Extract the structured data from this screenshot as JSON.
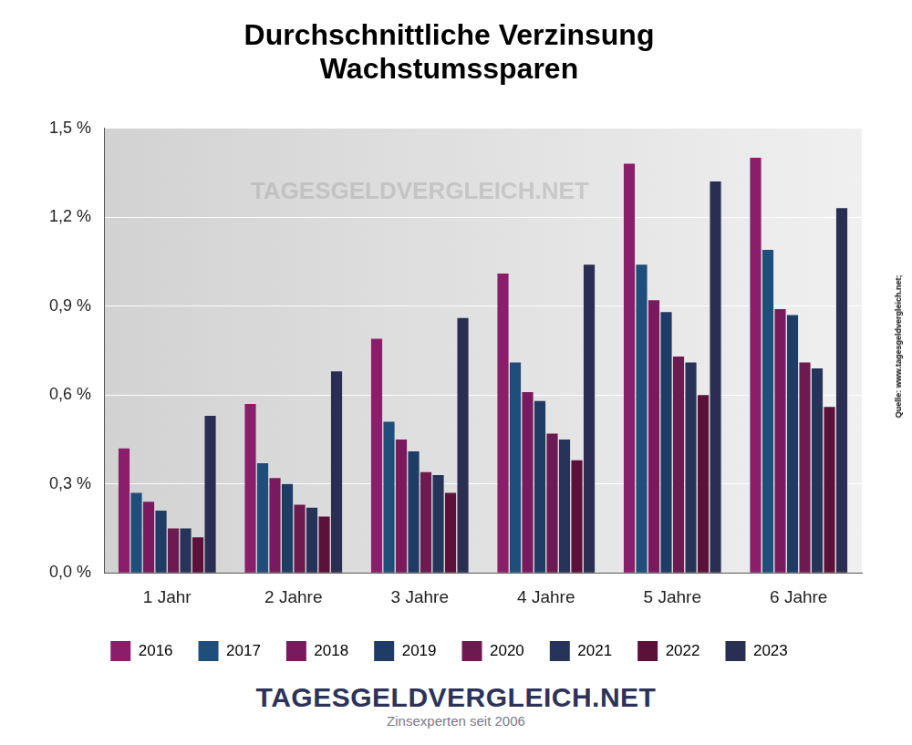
{
  "chart_data": {
    "type": "bar",
    "title": [
      "Durchschnittliche Verzinsung",
      "Wachstumssparen"
    ],
    "categories": [
      "1 Jahr",
      "2 Jahre",
      "3 Jahre",
      "4 Jahre",
      "5 Jahre",
      "6 Jahre"
    ],
    "series": [
      {
        "name": "2016",
        "color": "#8b1e6b",
        "values": [
          0.42,
          0.57,
          0.79,
          1.01,
          1.38,
          1.4
        ]
      },
      {
        "name": "2017",
        "color": "#1f4e7a",
        "values": [
          0.27,
          0.37,
          0.51,
          0.71,
          1.04,
          1.09
        ]
      },
      {
        "name": "2018",
        "color": "#7a1a5e",
        "values": [
          0.24,
          0.32,
          0.45,
          0.61,
          0.92,
          0.89
        ]
      },
      {
        "name": "2019",
        "color": "#1e3c64",
        "values": [
          0.21,
          0.3,
          0.41,
          0.58,
          0.88,
          0.87
        ]
      },
      {
        "name": "2020",
        "color": "#6c1a4f",
        "values": [
          0.15,
          0.23,
          0.34,
          0.47,
          0.73,
          0.71
        ]
      },
      {
        "name": "2021",
        "color": "#27345a",
        "values": [
          0.15,
          0.22,
          0.33,
          0.45,
          0.71,
          0.69
        ]
      },
      {
        "name": "2022",
        "color": "#5c1238",
        "values": [
          0.12,
          0.19,
          0.27,
          0.38,
          0.6,
          0.56
        ]
      },
      {
        "name": "2023",
        "color": "#2a2e52",
        "values": [
          0.53,
          0.68,
          0.86,
          1.04,
          1.32,
          1.23
        ]
      }
    ],
    "ylim": [
      0,
      1.5
    ],
    "yticks": [
      {
        "value": 0,
        "label": "0,0 %"
      },
      {
        "value": 0.3,
        "label": "0,3 %"
      },
      {
        "value": 0.6,
        "label": "0,6 %"
      },
      {
        "value": 0.9,
        "label": "0,9 %"
      },
      {
        "value": 1.2,
        "label": "1,2 %"
      },
      {
        "value": 1.5,
        "label": "1,5 %"
      }
    ],
    "grid": true,
    "legend": "bottom",
    "annotations": {
      "watermark": "TAGESGELDVERGLEICH.NET",
      "logo": "TAGESGELDVERGLEICH.NET",
      "tagline": "Zinsexperten seit 2006",
      "source": "Quelle: www.tagesgeldvergleich.net;"
    }
  }
}
